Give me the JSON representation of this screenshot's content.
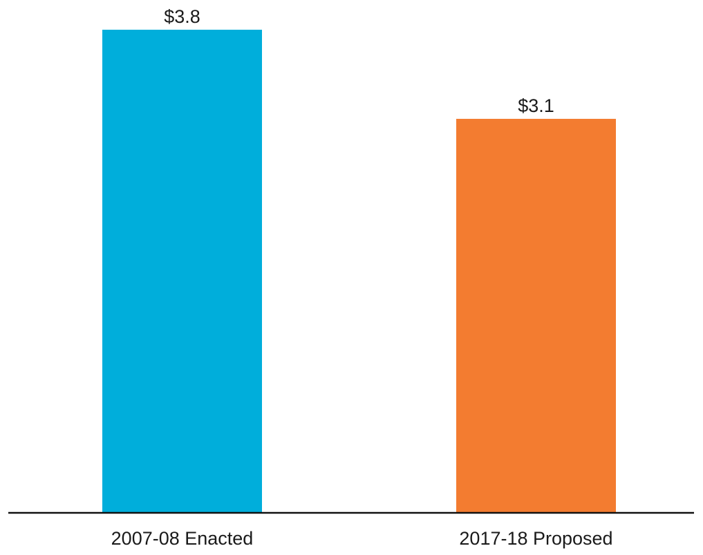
{
  "chart_data": {
    "type": "bar",
    "title": "",
    "xlabel": "",
    "ylabel": "",
    "categories": [
      "2007-08 Enacted",
      "2017-18 Proposed"
    ],
    "values": [
      3.8,
      3.1
    ],
    "value_labels": [
      "$3.8",
      "$3.1"
    ],
    "bar_colors": [
      "#00AEDB",
      "#F37C30"
    ],
    "ylim": [
      0,
      3.8
    ],
    "grid": false,
    "legend": "none"
  }
}
